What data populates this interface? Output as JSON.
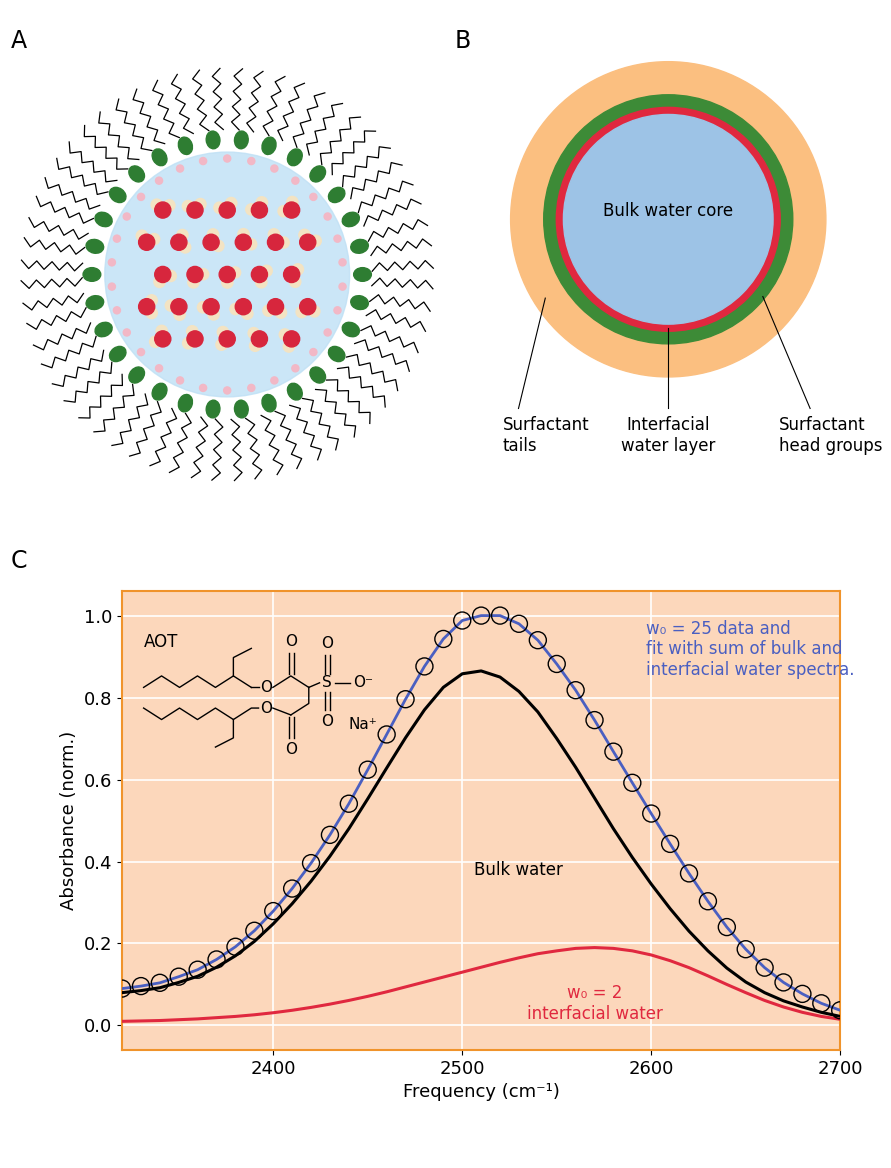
{
  "panels": {
    "A": {
      "label": "A"
    },
    "B": {
      "label": "B",
      "texts": {
        "core": "Bulk water core",
        "tails": "Surfactant\ntails",
        "interfacial": "Interfacial\nwater layer",
        "heads": "Surfactant\nhead groups"
      }
    },
    "C": {
      "label": "C",
      "molecule": {
        "name": "AOT",
        "atoms": [
          "O",
          "O",
          "S",
          "O",
          "O",
          "O⁻",
          "O",
          "O"
        ],
        "counterion": "Na⁺"
      }
    }
  },
  "chart_data": {
    "type": "line",
    "xlabel": "Frequency (cm⁻¹)",
    "ylabel": "Absorbance (norm.)",
    "x": [
      2320,
      2330,
      2340,
      2350,
      2360,
      2370,
      2380,
      2390,
      2400,
      2410,
      2420,
      2430,
      2440,
      2450,
      2460,
      2470,
      2480,
      2490,
      2500,
      2510,
      2520,
      2530,
      2540,
      2550,
      2560,
      2570,
      2580,
      2590,
      2600,
      2610,
      2620,
      2630,
      2640,
      2650,
      2660,
      2670,
      2680,
      2690,
      2700
    ],
    "series": [
      {
        "name": "w₀ = 25 data and\nfit with sum of bulk and\ninterfacial water spectra.",
        "type": "scatter",
        "marker": "o",
        "color": "#4a5fc1",
        "values": [
          0.09,
          0.096,
          0.104,
          0.119,
          0.136,
          0.161,
          0.192,
          0.231,
          0.279,
          0.334,
          0.396,
          0.465,
          0.541,
          0.624,
          0.71,
          0.796,
          0.876,
          0.943,
          0.988,
          1.0,
          1.0,
          0.98,
          0.94,
          0.882,
          0.818,
          0.745,
          0.668,
          0.592,
          0.517,
          0.443,
          0.371,
          0.303,
          0.24,
          0.186,
          0.141,
          0.105,
          0.077,
          0.054,
          0.037
        ],
        "fit": [
          0.09,
          0.096,
          0.104,
          0.119,
          0.136,
          0.161,
          0.192,
          0.231,
          0.279,
          0.334,
          0.396,
          0.465,
          0.541,
          0.624,
          0.71,
          0.796,
          0.876,
          0.943,
          0.988,
          1.0,
          1.0,
          0.98,
          0.94,
          0.882,
          0.818,
          0.745,
          0.668,
          0.592,
          0.517,
          0.443,
          0.371,
          0.303,
          0.24,
          0.186,
          0.141,
          0.105,
          0.077,
          0.054,
          0.037
        ]
      },
      {
        "name": "Bulk water",
        "type": "line",
        "color": "#000000",
        "values": [
          0.08,
          0.085,
          0.092,
          0.105,
          0.12,
          0.142,
          0.17,
          0.205,
          0.248,
          0.297,
          0.352,
          0.413,
          0.48,
          0.553,
          0.628,
          0.702,
          0.77,
          0.825,
          0.858,
          0.865,
          0.85,
          0.815,
          0.765,
          0.7,
          0.63,
          0.555,
          0.48,
          0.41,
          0.345,
          0.285,
          0.23,
          0.182,
          0.14,
          0.106,
          0.08,
          0.06,
          0.045,
          0.032,
          0.022
        ]
      },
      {
        "name": "w₀ = 2\ninterfacial water",
        "type": "line",
        "color": "#e0283f",
        "values": [
          0.01,
          0.011,
          0.012,
          0.014,
          0.016,
          0.019,
          0.022,
          0.026,
          0.031,
          0.037,
          0.044,
          0.052,
          0.061,
          0.071,
          0.082,
          0.094,
          0.106,
          0.118,
          0.13,
          0.142,
          0.154,
          0.165,
          0.175,
          0.182,
          0.188,
          0.19,
          0.188,
          0.182,
          0.172,
          0.158,
          0.141,
          0.121,
          0.1,
          0.08,
          0.061,
          0.045,
          0.032,
          0.022,
          0.015
        ]
      }
    ],
    "xlim": [
      2320,
      2700
    ],
    "xticks": [
      2400,
      2500,
      2600,
      2700
    ],
    "ylim": [
      -0.06,
      1.06
    ],
    "yticks": [
      {
        "value": 0,
        "label": "0.0"
      },
      {
        "value": 0.2,
        "label": "0.2"
      },
      {
        "value": 0.4,
        "label": "0.4"
      },
      {
        "value": 0.6,
        "label": "0.6"
      },
      {
        "value": 0.8,
        "label": "0.8"
      },
      {
        "value": 1.0,
        "label": "1.0"
      }
    ],
    "grid": true
  }
}
